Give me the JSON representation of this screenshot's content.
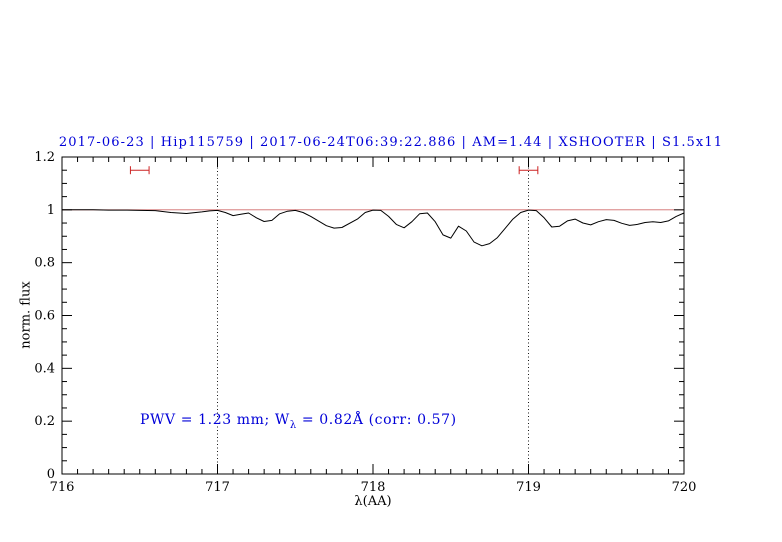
{
  "title": "2017-06-23 | Hip115759 | 2017-06-24T06:39:22.886 | AM=1.44 | XSHOOTER | S1.5x11",
  "annotation": {
    "prefix": "PWV = 1.23 mm; W",
    "sub": "λ",
    "suffix": " = 0.82Å (corr: 0.57)"
  },
  "axes": {
    "xlabel": "λ(AA)",
    "ylabel": "norm. flux"
  },
  "colors": {
    "title": "#0000d8",
    "annotation": "#0000d8",
    "continuum_line": "#d06a6a",
    "marker": "#cc2222",
    "spectrum": "#000000",
    "axis": "#000000"
  },
  "chart_data": {
    "type": "line",
    "title": "2017-06-23 | Hip115759 | 2017-06-24T06:39:22.886 | AM=1.44 | XSHOOTER | S1.5x11",
    "xlabel": "λ(AA)",
    "ylabel": "norm. flux",
    "xlim": [
      716,
      720
    ],
    "ylim": [
      0,
      1.2
    ],
    "x_ticks": {
      "values": [
        716,
        717,
        718,
        719,
        720
      ],
      "labels": [
        "716",
        "717",
        "718",
        "719",
        "720"
      ]
    },
    "y_ticks": {
      "values": [
        0,
        0.2,
        0.4,
        0.6,
        0.8,
        1,
        1.2
      ],
      "labels": [
        "0",
        "0.2",
        "0.4",
        "0.6",
        "0.8",
        "1",
        "1.2"
      ]
    },
    "x_minor_step": 0.1,
    "y_minor_step": 0.05,
    "grid": "off",
    "dotted_vlines": [
      717,
      719
    ],
    "continuum_hline": 1.0,
    "telluric_markers": [
      {
        "x_center": 716.5,
        "x_half_width": 0.06,
        "y": 1.15
      },
      {
        "x_center": 719.0,
        "x_half_width": 0.06,
        "y": 1.15
      }
    ],
    "series": [
      {
        "name": "normalized-spectrum",
        "x": [
          716.0,
          716.1,
          716.2,
          716.3,
          716.4,
          716.5,
          716.6,
          716.7,
          716.8,
          716.9,
          716.95,
          717.0,
          717.05,
          717.1,
          717.15,
          717.2,
          717.25,
          717.3,
          717.35,
          717.4,
          717.45,
          717.5,
          717.55,
          717.6,
          717.7,
          717.75,
          717.8,
          717.9,
          717.95,
          718.0,
          718.05,
          718.1,
          718.15,
          718.2,
          718.25,
          718.3,
          718.35,
          718.4,
          718.45,
          718.5,
          718.55,
          718.6,
          718.65,
          718.7,
          718.75,
          718.8,
          718.85,
          718.9,
          718.95,
          719.0,
          719.05,
          719.1,
          719.15,
          719.2,
          719.25,
          719.3,
          719.35,
          719.4,
          719.45,
          719.5,
          719.55,
          719.6,
          719.65,
          719.7,
          719.75,
          719.8,
          719.85,
          719.9,
          719.95,
          720.0
        ],
        "y": [
          1.0,
          1.0,
          1.0,
          0.999,
          0.999,
          0.998,
          0.997,
          0.99,
          0.986,
          0.992,
          0.996,
          0.998,
          0.99,
          0.978,
          0.983,
          0.988,
          0.97,
          0.956,
          0.96,
          0.985,
          0.995,
          0.998,
          0.99,
          0.975,
          0.94,
          0.931,
          0.933,
          0.965,
          0.99,
          0.999,
          0.998,
          0.975,
          0.945,
          0.932,
          0.955,
          0.985,
          0.988,
          0.955,
          0.905,
          0.893,
          0.938,
          0.92,
          0.878,
          0.864,
          0.872,
          0.895,
          0.93,
          0.965,
          0.99,
          0.999,
          0.997,
          0.97,
          0.935,
          0.938,
          0.958,
          0.965,
          0.95,
          0.943,
          0.955,
          0.963,
          0.96,
          0.949,
          0.941,
          0.945,
          0.952,
          0.955,
          0.952,
          0.958,
          0.975,
          0.988
        ]
      }
    ],
    "pwv_mm": 1.23,
    "equivalent_width_angstrom": 0.82,
    "correction": 0.57
  }
}
